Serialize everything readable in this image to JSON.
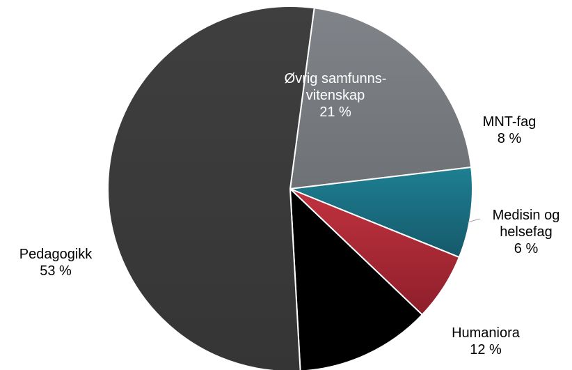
{
  "chart_data": {
    "type": "pie",
    "categories": [
      "Øvrig samfunns-vitenskap",
      "MNT-fag",
      "Medisin og helsefag",
      "Humaniora",
      "Pedagogikk"
    ],
    "values": [
      21,
      8,
      6,
      12,
      53
    ],
    "unit": "%",
    "slices": [
      {
        "name": "Øvrig samfunns-vitenskap",
        "value": 21,
        "lines": [
          "Øvrig samfunns-",
          "vitenskap"
        ],
        "value_label": "21 %",
        "color": "#808489",
        "color_dark": "#6e7276",
        "label_color": "#ffffff"
      },
      {
        "name": "MNT-fag",
        "value": 8,
        "lines": [
          "MNT-fag"
        ],
        "value_label": "8 %",
        "color": "#1e7f92",
        "color_dark": "#15596a",
        "label_color": "#000000"
      },
      {
        "name": "Medisin og helsefag",
        "value": 6,
        "lines": [
          "Medisin og",
          "helsefag"
        ],
        "value_label": "6 %",
        "color": "#c1323f",
        "color_dark": "#8d1f2b",
        "label_color": "#000000"
      },
      {
        "name": "Humaniora",
        "value": 12,
        "lines": [
          "Humaniora"
        ],
        "value_label": "12 %",
        "color": "#000000",
        "color_dark": "#000000",
        "label_color": "#000000"
      },
      {
        "name": "Pedagogikk",
        "value": 53,
        "lines": [
          "Pedagogikk"
        ],
        "value_label": "53 %",
        "color": "#3f3f3f",
        "color_dark": "#353535",
        "label_color": "#000000"
      }
    ]
  }
}
